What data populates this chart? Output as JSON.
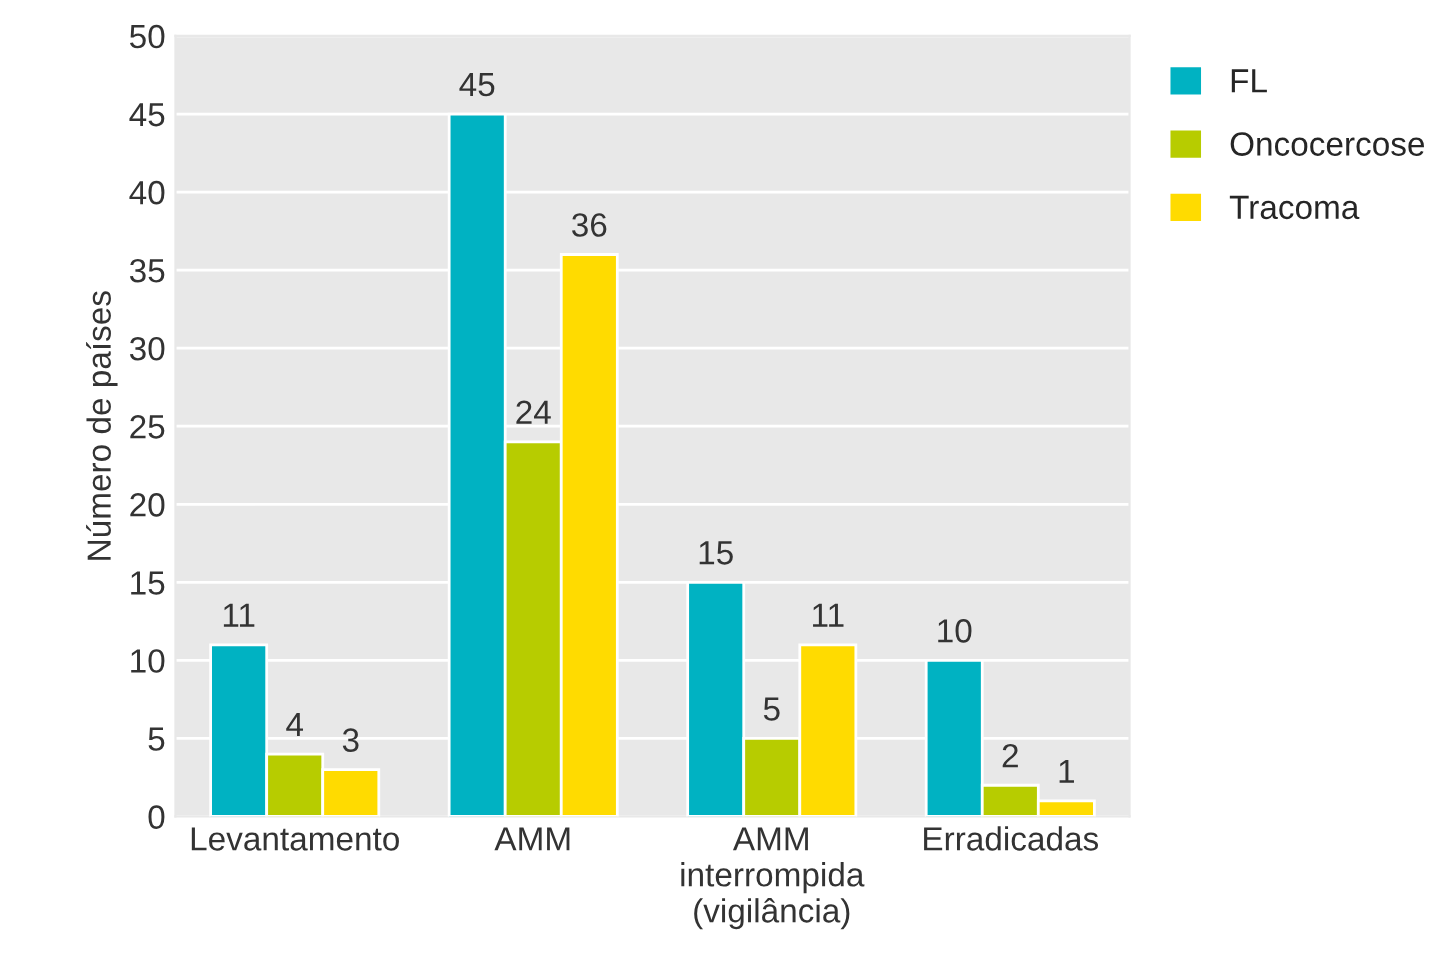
{
  "chart_data": {
    "type": "bar",
    "ylabel": "Número de países",
    "categories": [
      "Levantamento",
      "AMM",
      "AMM\ninterrompida\n(vigilância)",
      "Erradicadas"
    ],
    "series": [
      {
        "name": "FL",
        "color": "#00b2c2",
        "values": [
          11,
          45,
          15,
          10
        ]
      },
      {
        "name": "Oncocercose",
        "color": "#b7cc00",
        "values": [
          4,
          24,
          5,
          2
        ]
      },
      {
        "name": "Tracoma",
        "color": "#ffdb00",
        "values": [
          3,
          36,
          11,
          1
        ]
      }
    ],
    "ylim": [
      0,
      50
    ],
    "yticks": [
      0,
      5,
      10,
      15,
      20,
      25,
      30,
      35,
      40,
      45,
      50
    ],
    "grid": "y",
    "legend": "top right",
    "data_labels": true
  }
}
